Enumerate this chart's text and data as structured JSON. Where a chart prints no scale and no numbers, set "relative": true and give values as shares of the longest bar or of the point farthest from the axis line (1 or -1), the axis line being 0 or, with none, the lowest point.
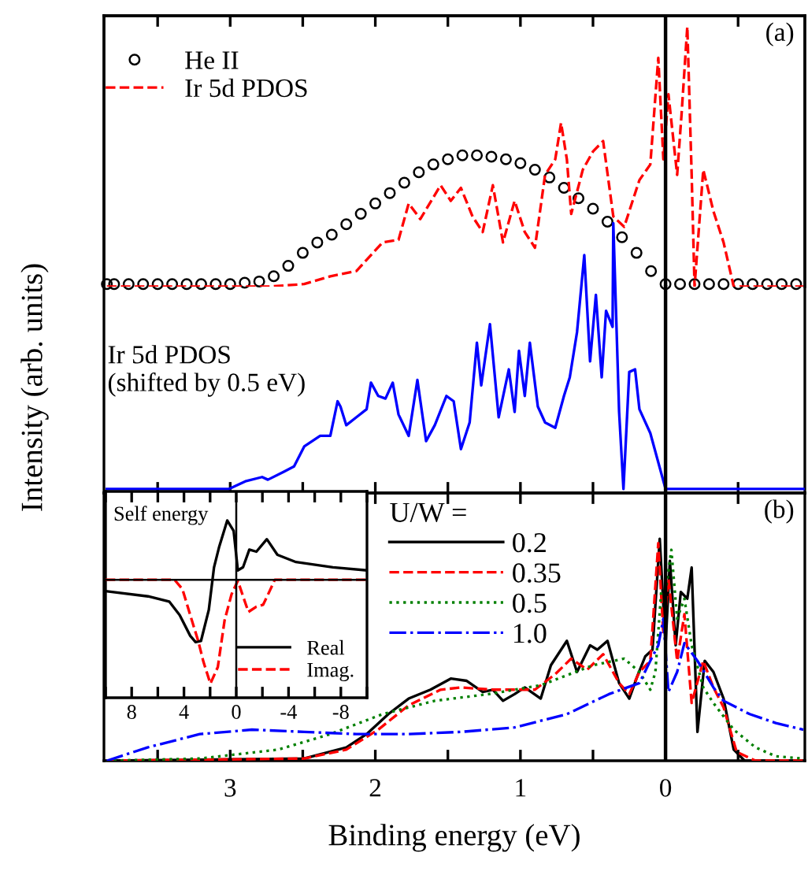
{
  "chart_data": [
    {
      "type": "line",
      "relative": true,
      "xlim": [
        3.87,
        -0.96
      ],
      "tick_labels": false,
      "legend": "top left",
      "annotations": [
        "(a)"
      ],
      "ref_lines": [
        {
          "axis": "x",
          "value": 0,
          "color": "#000000"
        }
      ],
      "series": [
        {
          "name": "He II",
          "type": "scatter",
          "marker": "circle",
          "color": "#000000",
          "x": [
            3.85,
            3.8,
            3.7,
            3.6,
            3.5,
            3.4,
            3.3,
            3.2,
            3.1,
            3.0,
            2.9,
            2.8,
            2.7,
            2.6,
            2.5,
            2.4,
            2.3,
            2.2,
            2.1,
            2.0,
            1.9,
            1.8,
            1.7,
            1.6,
            1.5,
            1.4,
            1.3,
            1.2,
            1.1,
            1.0,
            0.9,
            0.8,
            0.7,
            0.6,
            0.5,
            0.4,
            0.3,
            0.2,
            0.1,
            0.0,
            -0.1,
            -0.2,
            -0.3,
            -0.4,
            -0.5,
            -0.6,
            -0.7,
            -0.8,
            -0.9
          ],
          "values": [
            0.01,
            0.01,
            0.01,
            0.01,
            0.01,
            0.01,
            0.01,
            0.01,
            0.01,
            0.01,
            0.015,
            0.02,
            0.04,
            0.08,
            0.13,
            0.17,
            0.2,
            0.24,
            0.28,
            0.32,
            0.36,
            0.4,
            0.44,
            0.47,
            0.49,
            0.505,
            0.505,
            0.5,
            0.49,
            0.475,
            0.45,
            0.42,
            0.38,
            0.34,
            0.3,
            0.25,
            0.19,
            0.13,
            0.06,
            0.01,
            0.01,
            0.01,
            0.01,
            0.01,
            0.01,
            0.01,
            0.01,
            0.01,
            0.01
          ]
        },
        {
          "name": "Ir 5d PDOS",
          "type": "line",
          "line_style": "dashed",
          "color": "#ff0000",
          "x": [
            3.85,
            2.74,
            2.49,
            2.31,
            2.13,
            1.95,
            1.84,
            1.77,
            1.69,
            1.55,
            1.48,
            1.41,
            1.33,
            1.26,
            1.19,
            1.12,
            1.04,
            0.97,
            0.9,
            0.83,
            0.76,
            0.72,
            0.68,
            0.65,
            0.57,
            0.5,
            0.43,
            0.36,
            0.285,
            0.18,
            0.105,
            0.05,
            0.015,
            -0.02,
            -0.08,
            -0.11,
            -0.15,
            -0.18,
            -0.2,
            -0.26,
            -0.33,
            -0.4,
            -0.47,
            -0.95
          ],
          "values": [
            0,
            0,
            0.01,
            0.04,
            0.06,
            0.17,
            0.18,
            0.32,
            0.26,
            0.39,
            0.33,
            0.38,
            0.27,
            0.21,
            0.39,
            0.17,
            0.33,
            0.21,
            0.15,
            0.43,
            0.49,
            0.63,
            0.49,
            0.28,
            0.45,
            0.52,
            0.56,
            0.27,
            0.23,
            0.41,
            0.47,
            0.88,
            0.49,
            0.74,
            0.43,
            0.66,
            1.0,
            0.43,
            0,
            0.45,
            0.29,
            0.17,
            0,
            0
          ]
        }
      ]
    },
    {
      "type": "line",
      "relative": true,
      "xlim": [
        3.87,
        -0.96
      ],
      "tick_labels": false,
      "ylabel": "Intensity (arb. units)",
      "ref_lines": [
        {
          "axis": "x",
          "value": 0,
          "color": "#000000"
        }
      ],
      "xticks": [
        {
          "value": 3.5,
          "label": null
        },
        {
          "value": 3,
          "label": null
        },
        {
          "value": 2.5,
          "label": null
        },
        {
          "value": 2,
          "label": null
        },
        {
          "value": 1.5,
          "label": null
        },
        {
          "value": 1,
          "label": null
        },
        {
          "value": 0.5,
          "label": null
        },
        {
          "value": 0,
          "label": null
        },
        {
          "value": -0.5,
          "label": null
        }
      ],
      "series": [
        {
          "name": "Ir 5d PDOS\n(shifted by 0.5 eV)",
          "color": "#0000ff",
          "x": [
            3.85,
            3.01,
            2.89,
            2.78,
            2.74,
            2.63,
            2.56,
            2.49,
            2.38,
            2.31,
            2.26,
            2.24,
            2.2,
            2.13,
            2.06,
            2.03,
            1.98,
            1.93,
            1.88,
            1.84,
            1.77,
            1.71,
            1.65,
            1.59,
            1.51,
            1.46,
            1.41,
            1.35,
            1.3,
            1.27,
            1.21,
            1.15,
            1.08,
            1.04,
            1.01,
            0.97,
            0.935,
            0.88,
            0.83,
            0.76,
            0.7,
            0.66,
            0.61,
            0.56,
            0.52,
            0.48,
            0.44,
            0.41,
            0.365,
            0.36,
            0.32,
            0.29,
            0.25,
            0.21,
            0.18,
            0.105,
            0.0,
            -0.95
          ],
          "values": [
            0,
            0,
            0.03,
            0.045,
            0.035,
            0.065,
            0.085,
            0.16,
            0.2,
            0.2,
            0.33,
            0.31,
            0.24,
            0.27,
            0.3,
            0.4,
            0.35,
            0.34,
            0.4,
            0.28,
            0.2,
            0.41,
            0.18,
            0.24,
            0.35,
            0.33,
            0.15,
            0.25,
            0.55,
            0.39,
            0.62,
            0.27,
            0.45,
            0.29,
            0.52,
            0.35,
            0.55,
            0.31,
            0.25,
            0.23,
            0.35,
            0.42,
            0.59,
            0.88,
            0.48,
            0.73,
            0.42,
            0.67,
            0.61,
            1.0,
            0.29,
            0,
            0.44,
            0.45,
            0.3,
            0.21,
            0,
            0
          ]
        }
      ]
    },
    {
      "type": "line",
      "relative": true,
      "xlim": [
        3.87,
        -0.96
      ],
      "tick_labels": "x",
      "xlabel": "Binding energy (eV)",
      "legend": "top",
      "legend_title": "U/W =",
      "annotations": [
        "(b)"
      ],
      "ref_lines": [
        {
          "axis": "x",
          "value": 0,
          "color": "#000000"
        }
      ],
      "xticks": [
        {
          "value": 3.5,
          "label": null
        },
        3,
        {
          "value": 2.5,
          "label": null
        },
        2,
        {
          "value": 1.5,
          "label": null
        },
        1,
        {
          "value": 0.5,
          "label": null
        },
        0,
        {
          "value": -0.5,
          "label": null
        }
      ],
      "series": [
        {
          "name": "0.2",
          "line_style": "solid",
          "color": "#000000",
          "x": [
            3.85,
            2.49,
            2.2,
            2.06,
            1.91,
            1.77,
            1.62,
            1.48,
            1.37,
            1.26,
            1.19,
            1.12,
            1.04,
            0.97,
            0.86,
            0.79,
            0.68,
            0.61,
            0.52,
            0.47,
            0.4,
            0.32,
            0.25,
            0.195,
            0.14,
            0.09,
            0.04,
            0.0,
            -0.03,
            -0.07,
            -0.105,
            -0.15,
            -0.18,
            -0.22,
            -0.27,
            -0.33,
            -0.4,
            -0.47,
            -0.545,
            -0.95
          ],
          "values": [
            0,
            0.01,
            0.06,
            0.12,
            0.21,
            0.28,
            0.32,
            0.37,
            0.36,
            0.31,
            0.32,
            0.27,
            0.3,
            0.33,
            0.28,
            0.43,
            0.54,
            0.4,
            0.52,
            0.5,
            0.54,
            0.35,
            0.28,
            0.38,
            0.47,
            0.5,
            1.0,
            0.52,
            0.9,
            0.52,
            0.76,
            0.73,
            0.87,
            0.13,
            0.45,
            0.4,
            0.28,
            0.05,
            0,
            0
          ]
        },
        {
          "name": "0.35",
          "line_style": "dashed",
          "color": "#ff0000",
          "x": [
            3.85,
            2.49,
            2.2,
            1.98,
            1.77,
            1.55,
            1.41,
            1.19,
            0.9,
            0.76,
            0.65,
            0.54,
            0.43,
            0.32,
            0.25,
            0.18,
            0.105,
            0.05,
            0.015,
            -0.02,
            -0.08,
            -0.13,
            -0.18,
            -0.26,
            -0.33,
            -0.4,
            -0.49,
            -0.62,
            -0.95
          ],
          "values": [
            0,
            0.01,
            0.05,
            0.14,
            0.25,
            0.32,
            0.33,
            0.32,
            0.32,
            0.39,
            0.46,
            0.41,
            0.48,
            0.35,
            0.3,
            0.4,
            0.45,
            0.98,
            0.57,
            0.82,
            0.45,
            0.66,
            0.26,
            0.45,
            0.33,
            0.24,
            0.04,
            0,
            0
          ]
        },
        {
          "name": "0.5",
          "line_style": "dotted",
          "color": "#008000",
          "x": [
            3.85,
            3.21,
            2.67,
            2.31,
            1.95,
            1.59,
            1.22,
            0.86,
            0.5,
            0.285,
            0.18,
            0.105,
            0.07,
            0.03,
            0.0,
            -0.04,
            -0.08,
            -0.13,
            -0.18,
            -0.26,
            -0.33,
            -0.47,
            -0.62,
            -0.76,
            -0.95
          ],
          "values": [
            0,
            0.01,
            0.05,
            0.12,
            0.21,
            0.27,
            0.3,
            0.34,
            0.43,
            0.46,
            0.4,
            0.32,
            0.4,
            0.76,
            0.76,
            0.95,
            0.64,
            0.73,
            0.52,
            0.33,
            0.26,
            0.14,
            0.06,
            0.02,
            0.01
          ]
        },
        {
          "name": "1.0",
          "line_style": "dashdot",
          "color": "#0000ff",
          "x": [
            3.85,
            3.57,
            3.21,
            2.85,
            2.49,
            2.13,
            1.77,
            1.41,
            1.04,
            0.68,
            0.39,
            0.18,
            0.105,
            0.05,
            0.015,
            -0.02,
            -0.08,
            -0.13,
            -0.22,
            -0.33,
            -0.4,
            -0.58,
            -0.76,
            -0.95
          ],
          "values": [
            0,
            0.06,
            0.12,
            0.14,
            0.13,
            0.12,
            0.12,
            0.13,
            0.15,
            0.21,
            0.3,
            0.35,
            0.45,
            0.52,
            0.64,
            0.31,
            0.4,
            0.53,
            0.45,
            0.33,
            0.27,
            0.21,
            0.17,
            0.14
          ]
        }
      ]
    },
    {
      "type": "line",
      "relative": true,
      "title": "Self energy",
      "xlim": [
        10,
        -10
      ],
      "tick_labels": "x",
      "legend": "bottom right",
      "xticks": [
        {
          "value": 10,
          "label": null
        },
        8,
        {
          "value": 6,
          "label": null
        },
        4,
        {
          "value": 2,
          "label": null
        },
        0,
        {
          "value": -2,
          "label": null
        },
        -4,
        {
          "value": -6,
          "label": null
        },
        -8,
        {
          "value": -10,
          "label": null
        }
      ],
      "ref_lines": [
        {
          "axis": "x",
          "value": 0,
          "color": "#000000"
        },
        {
          "axis": "y",
          "value": 0,
          "color": "#000000"
        }
      ],
      "series": [
        {
          "name": "Real",
          "line_style": "solid",
          "color": "#000000",
          "x": [
            10,
            6.75,
            5.13,
            4.33,
            3.52,
            3.11,
            2.7,
            2.1,
            1.7,
            1.3,
            0.69,
            0.2,
            -0.12,
            -0.52,
            -1.0,
            -1.54,
            -2.34,
            -3.15,
            -4.57,
            -7.39,
            -10
          ],
          "values": [
            -0.11,
            -0.16,
            -0.21,
            -0.34,
            -0.54,
            -0.6,
            -0.59,
            -0.29,
            0.12,
            0.32,
            0.57,
            0.47,
            0.09,
            0.12,
            0.29,
            0.27,
            0.39,
            0.24,
            0.17,
            0.12,
            0.09
          ]
        },
        {
          "name": "Imag.",
          "line_style": "dashed",
          "color": "#ff0000",
          "x": [
            10,
            4.73,
            4.12,
            3.52,
            2.91,
            2.51,
            1.98,
            1.41,
            0.89,
            0.36,
            -0.12,
            -0.52,
            -0.93,
            -1.54,
            -2.06,
            -2.55,
            -2.95,
            -10
          ],
          "values": [
            0,
            0,
            -0.09,
            -0.34,
            -0.59,
            -0.79,
            -1.0,
            -0.84,
            -0.39,
            -0.14,
            -0.01,
            -0.16,
            -0.31,
            -0.26,
            -0.24,
            -0.11,
            0,
            0
          ]
        }
      ]
    }
  ]
}
